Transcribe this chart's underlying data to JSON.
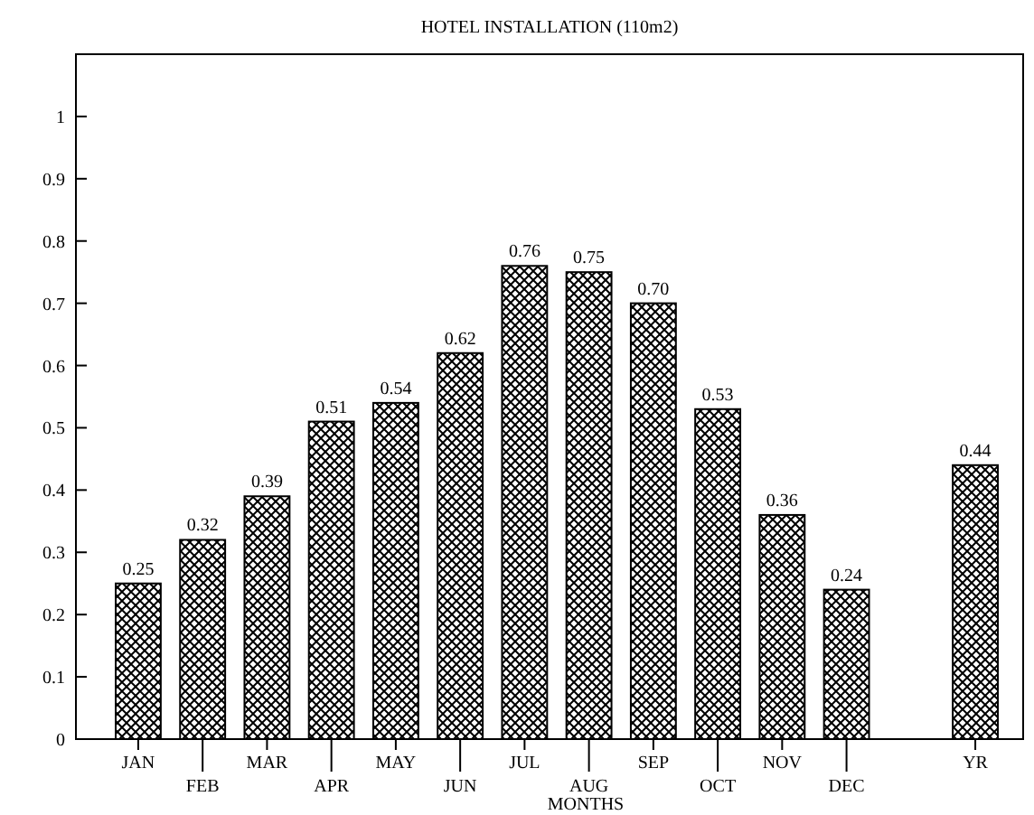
{
  "chart_data": {
    "type": "bar",
    "title": "HOTEL INSTALLATION (110m2)",
    "xlabel": "MONTHS",
    "categories": [
      "JAN",
      "FEB",
      "MAR",
      "APR",
      "MAY",
      "JUN",
      "JUL",
      "AUG",
      "SEP",
      "OCT",
      "NOV",
      "DEC",
      null,
      "YR"
    ],
    "values": [
      0.25,
      0.32,
      0.39,
      0.51,
      0.54,
      0.62,
      0.76,
      0.75,
      0.7,
      0.53,
      0.36,
      0.24,
      null,
      0.44
    ],
    "value_labels": [
      "0.25",
      "0.32",
      "0.39",
      "0.51",
      "0.54",
      "0.62",
      "0.76",
      "0.75",
      "0.70",
      "0.53",
      "0.36",
      "0.24",
      null,
      "0.44"
    ],
    "color": "#000000",
    "ylim": [
      0,
      1.1
    ],
    "yticks": [
      0,
      0.1,
      0.2,
      0.3,
      0.4,
      0.5,
      0.6,
      0.7,
      0.8,
      0.9,
      1
    ],
    "grid": false
  }
}
